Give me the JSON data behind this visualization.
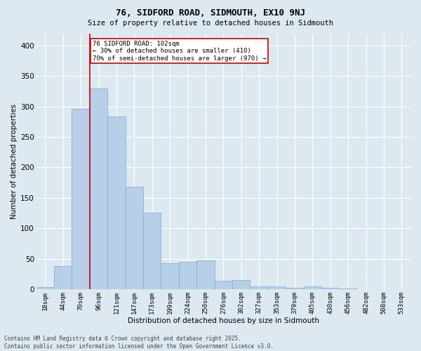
{
  "title_line1": "76, SIDFORD ROAD, SIDMOUTH, EX10 9NJ",
  "title_line2": "Size of property relative to detached houses in Sidmouth",
  "xlabel": "Distribution of detached houses by size in Sidmouth",
  "ylabel": "Number of detached properties",
  "categories": [
    "18sqm",
    "44sqm",
    "70sqm",
    "96sqm",
    "121sqm",
    "147sqm",
    "173sqm",
    "199sqm",
    "224sqm",
    "250sqm",
    "276sqm",
    "302sqm",
    "327sqm",
    "353sqm",
    "379sqm",
    "405sqm",
    "430sqm",
    "456sqm",
    "482sqm",
    "508sqm",
    "533sqm"
  ],
  "values": [
    3,
    38,
    296,
    330,
    283,
    168,
    125,
    43,
    45,
    47,
    14,
    15,
    5,
    5,
    2,
    5,
    2,
    1,
    0,
    0,
    0
  ],
  "bar_color": "#b8cfe8",
  "bar_edge_color": "#7aadd4",
  "background_color": "#dde8f0",
  "grid_color": "#ffffff",
  "ylim": [
    0,
    420
  ],
  "yticks": [
    0,
    50,
    100,
    150,
    200,
    250,
    300,
    350,
    400
  ],
  "red_line_index": 3,
  "annotation_text": "76 SIDFORD ROAD: 102sqm\n← 30% of detached houses are smaller (410)\n70% of semi-detached houses are larger (970) →",
  "annotation_box_color": "#ffffff",
  "annotation_box_edge": "#cc0000",
  "footer_line1": "Contains HM Land Registry data © Crown copyright and database right 2025.",
  "footer_line2": "Contains public sector information licensed under the Open Government Licence v3.0."
}
